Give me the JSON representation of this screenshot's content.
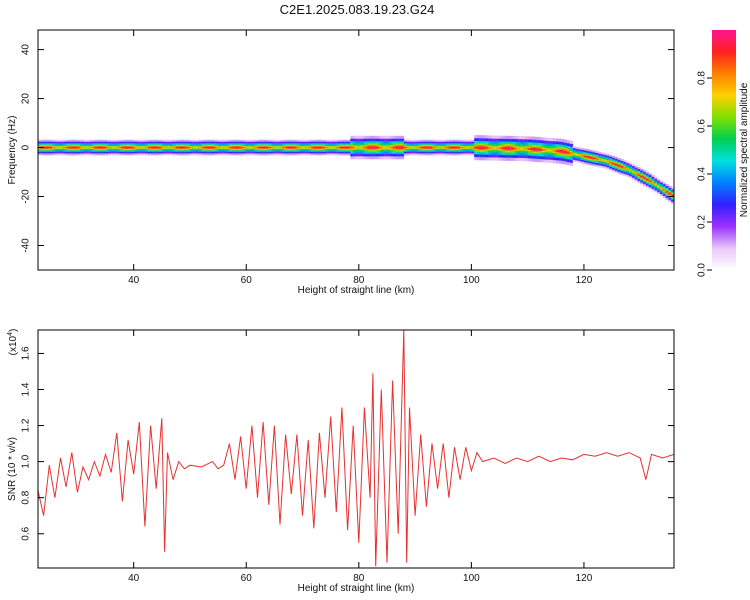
{
  "title": "C2E1.2025.083.19.23.G24",
  "chart_data": [
    {
      "type": "heatmap",
      "xlabel": "Height of straight line (km)",
      "ylabel": "Frequency (Hz)",
      "xlim": [
        23,
        136
      ],
      "ylim": [
        -50,
        48
      ],
      "xticks": [
        40,
        60,
        80,
        100,
        120
      ],
      "yticks": [
        -40,
        -20,
        0,
        20,
        40
      ],
      "colorbar": {
        "label": "Normalized spectral amplitude",
        "range": [
          0,
          1
        ],
        "ticks": [
          "0.0",
          "0.2",
          "0.4",
          "0.6",
          "0.8"
        ],
        "colors": [
          "#ffffff",
          "#e8c8f8",
          "#9b30ff",
          "#3020ff",
          "#0080ff",
          "#00e0e0",
          "#00d050",
          "#80e000",
          "#ffd000",
          "#ff8000",
          "#ff2020",
          "#ff1493"
        ]
      },
      "ridge": [
        {
          "x": 23,
          "f": 0
        },
        {
          "x": 100,
          "f": 0
        },
        {
          "x": 110,
          "f": -0.5
        },
        {
          "x": 116,
          "f": -1.5
        },
        {
          "x": 120,
          "f": -3.5
        },
        {
          "x": 124,
          "f": -5.5
        },
        {
          "x": 128,
          "f": -9
        },
        {
          "x": 132,
          "f": -14
        },
        {
          "x": 136,
          "f": -20
        }
      ]
    },
    {
      "type": "line",
      "xlabel": "Height of straight line (km)",
      "ylabel": "SNR (10 * v/v)",
      "yscale_label": "(x10",
      "yscale_exp": "4",
      "xlim": [
        23,
        136
      ],
      "ylim": [
        0.41,
        1.73
      ],
      "xticks": [
        40,
        60,
        80,
        100,
        120
      ],
      "yticks": [
        "0.6",
        "0.8",
        "1.0",
        "1.2",
        "1.4",
        "1.6"
      ],
      "color": "#e83030",
      "series": [
        {
          "values": [
            {
              "x": 23,
              "y": 0.84
            },
            {
              "x": 24,
              "y": 0.7
            },
            {
              "x": 25,
              "y": 0.98
            },
            {
              "x": 26,
              "y": 0.8
            },
            {
              "x": 27,
              "y": 1.02
            },
            {
              "x": 28,
              "y": 0.86
            },
            {
              "x": 29,
              "y": 1.05
            },
            {
              "x": 30,
              "y": 0.83
            },
            {
              "x": 31,
              "y": 0.97
            },
            {
              "x": 32,
              "y": 0.9
            },
            {
              "x": 33,
              "y": 1.0
            },
            {
              "x": 34,
              "y": 0.92
            },
            {
              "x": 35,
              "y": 1.04
            },
            {
              "x": 36,
              "y": 0.94
            },
            {
              "x": 37,
              "y": 1.16
            },
            {
              "x": 38,
              "y": 0.78
            },
            {
              "x": 39,
              "y": 1.12
            },
            {
              "x": 40,
              "y": 0.93
            },
            {
              "x": 41,
              "y": 1.22
            },
            {
              "x": 42,
              "y": 0.64
            },
            {
              "x": 43,
              "y": 1.2
            },
            {
              "x": 44,
              "y": 0.85
            },
            {
              "x": 45,
              "y": 1.24
            },
            {
              "x": 45.5,
              "y": 0.5
            },
            {
              "x": 46,
              "y": 1.05
            },
            {
              "x": 47,
              "y": 0.9
            },
            {
              "x": 48,
              "y": 1.0
            },
            {
              "x": 49,
              "y": 0.96
            },
            {
              "x": 50,
              "y": 0.98
            },
            {
              "x": 52,
              "y": 0.97
            },
            {
              "x": 54,
              "y": 1.0
            },
            {
              "x": 55,
              "y": 0.96
            },
            {
              "x": 56,
              "y": 0.98
            },
            {
              "x": 57,
              "y": 1.1
            },
            {
              "x": 58,
              "y": 0.9
            },
            {
              "x": 59,
              "y": 1.14
            },
            {
              "x": 60,
              "y": 0.85
            },
            {
              "x": 61,
              "y": 1.2
            },
            {
              "x": 62,
              "y": 0.8
            },
            {
              "x": 63,
              "y": 1.22
            },
            {
              "x": 64,
              "y": 0.76
            },
            {
              "x": 65,
              "y": 1.2
            },
            {
              "x": 66,
              "y": 0.65
            },
            {
              "x": 67,
              "y": 1.15
            },
            {
              "x": 68,
              "y": 0.82
            },
            {
              "x": 69,
              "y": 1.15
            },
            {
              "x": 70,
              "y": 0.7
            },
            {
              "x": 71,
              "y": 1.12
            },
            {
              "x": 72,
              "y": 0.63
            },
            {
              "x": 73,
              "y": 1.16
            },
            {
              "x": 74,
              "y": 0.8
            },
            {
              "x": 75,
              "y": 1.25
            },
            {
              "x": 76,
              "y": 0.72
            },
            {
              "x": 77,
              "y": 1.3
            },
            {
              "x": 78,
              "y": 0.62
            },
            {
              "x": 79,
              "y": 1.2
            },
            {
              "x": 80,
              "y": 0.55
            },
            {
              "x": 81,
              "y": 1.3
            },
            {
              "x": 82,
              "y": 0.8
            },
            {
              "x": 82.5,
              "y": 1.49
            },
            {
              "x": 83,
              "y": 0.42
            },
            {
              "x": 84,
              "y": 1.4
            },
            {
              "x": 85,
              "y": 0.44
            },
            {
              "x": 86,
              "y": 1.45
            },
            {
              "x": 87,
              "y": 0.6
            },
            {
              "x": 88,
              "y": 1.73
            },
            {
              "x": 88.5,
              "y": 0.44
            },
            {
              "x": 89,
              "y": 1.3
            },
            {
              "x": 90,
              "y": 0.7
            },
            {
              "x": 91,
              "y": 1.15
            },
            {
              "x": 92,
              "y": 0.75
            },
            {
              "x": 93,
              "y": 1.1
            },
            {
              "x": 94,
              "y": 0.85
            },
            {
              "x": 95,
              "y": 1.1
            },
            {
              "x": 96,
              "y": 0.8
            },
            {
              "x": 97,
              "y": 1.08
            },
            {
              "x": 98,
              "y": 0.9
            },
            {
              "x": 99,
              "y": 1.08
            },
            {
              "x": 100,
              "y": 0.95
            },
            {
              "x": 101,
              "y": 1.05
            },
            {
              "x": 102,
              "y": 1.0
            },
            {
              "x": 104,
              "y": 1.02
            },
            {
              "x": 106,
              "y": 0.99
            },
            {
              "x": 108,
              "y": 1.02
            },
            {
              "x": 110,
              "y": 1.0
            },
            {
              "x": 112,
              "y": 1.03
            },
            {
              "x": 114,
              "y": 1.0
            },
            {
              "x": 116,
              "y": 1.02
            },
            {
              "x": 118,
              "y": 1.01
            },
            {
              "x": 120,
              "y": 1.04
            },
            {
              "x": 122,
              "y": 1.03
            },
            {
              "x": 124,
              "y": 1.05
            },
            {
              "x": 126,
              "y": 1.03
            },
            {
              "x": 128,
              "y": 1.05
            },
            {
              "x": 130,
              "y": 1.02
            },
            {
              "x": 131,
              "y": 0.9
            },
            {
              "x": 132,
              "y": 1.04
            },
            {
              "x": 134,
              "y": 1.02
            },
            {
              "x": 136,
              "y": 1.04
            }
          ]
        }
      ]
    }
  ]
}
